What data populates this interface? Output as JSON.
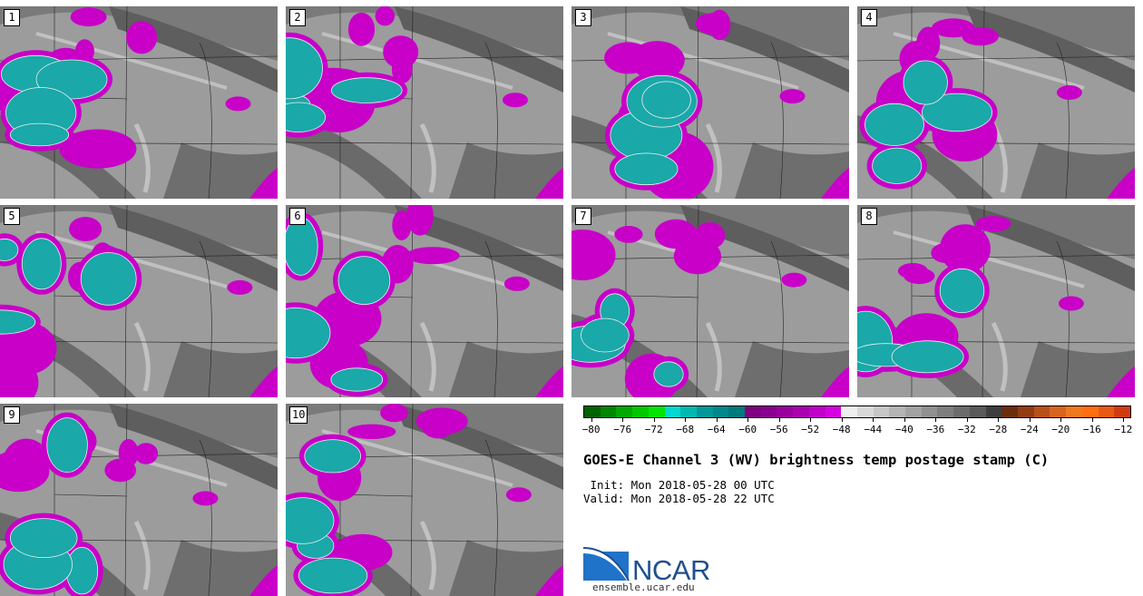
{
  "panels": [
    "1",
    "2",
    "3",
    "4",
    "5",
    "6",
    "7",
    "8",
    "9",
    "10"
  ],
  "colorbar": {
    "colors": [
      "#006400",
      "#008600",
      "#00a800",
      "#00c800",
      "#00e400",
      "#00d8d0",
      "#00b8b0",
      "#009898",
      "#00888a",
      "#007a7c",
      "#800080",
      "#8a0090",
      "#9a00a0",
      "#aa00b0",
      "#c000c8",
      "#d800e0",
      "#eeeeee",
      "#d8d8d8",
      "#c6c6c6",
      "#b4b4b4",
      "#a2a2a2",
      "#909090",
      "#7e7e7e",
      "#6c6c6c",
      "#5a5a5a",
      "#3e3e3e",
      "#6a2c0e",
      "#923c14",
      "#b8501c",
      "#d86420",
      "#f07820",
      "#ff6e10",
      "#e85a14",
      "#d03c10"
    ],
    "tick_labels": [
      "−80",
      "−76",
      "−72",
      "−68",
      "−64",
      "−60",
      "−56",
      "−52",
      "−48",
      "−44",
      "−40",
      "−36",
      "−32",
      "−28",
      "−24",
      "−20",
      "−16",
      "−12"
    ]
  },
  "title": "GOES-E Channel 3 (WV) brightness temp postage stamp (C)",
  "init_line": " Init: Mon 2018-05-28 00 UTC",
  "valid_line": "Valid: Mon 2018-05-28 22 UTC",
  "logo": {
    "name": "NCAR",
    "url": "ensemble.ucar.edu"
  }
}
